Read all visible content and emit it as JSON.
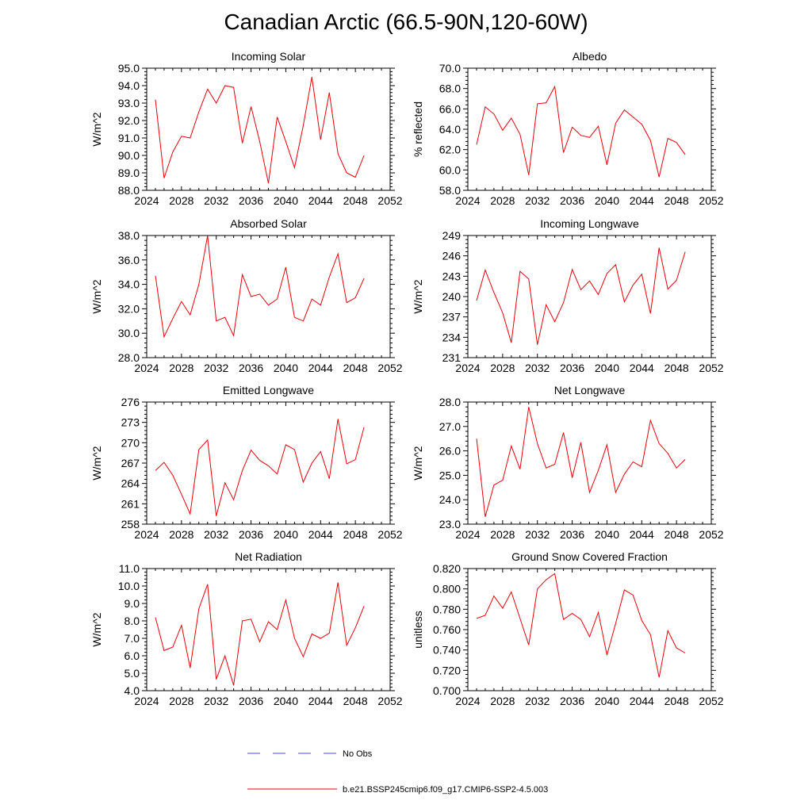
{
  "title": "Canadian Arctic (66.5-90N,120-60W)",
  "colors": {
    "model": "#e8000b",
    "obs": "#4a4adf",
    "axis": "#000000"
  },
  "legend": {
    "items": [
      {
        "label": "No Obs",
        "style": "dashed",
        "color": "#4a4adf"
      },
      {
        "label": "b.e21.BSSP245cmip6.f09_g17.CMIP6-SSP2-4.5.003",
        "style": "solid",
        "color": "#e8000b"
      }
    ]
  },
  "chart_data": [
    {
      "type": "line",
      "title": "Incoming Solar",
      "ylabel": "W/m^2",
      "xlim": [
        2024,
        2052
      ],
      "ylim": [
        88.0,
        95.0
      ],
      "xticks": [
        2024,
        2028,
        2032,
        2036,
        2040,
        2044,
        2048,
        2052
      ],
      "yticks": [
        "88.0",
        "89.0",
        "90.0",
        "91.0",
        "92.0",
        "93.0",
        "94.0",
        "95.0"
      ],
      "x": [
        2025,
        2026,
        2027,
        2028,
        2029,
        2030,
        2031,
        2032,
        2033,
        2034,
        2035,
        2036,
        2037,
        2038,
        2039,
        2040,
        2041,
        2042,
        2043,
        2044,
        2045,
        2046,
        2047,
        2048,
        2049
      ],
      "values": [
        93.2,
        88.7,
        90.2,
        91.1,
        91.0,
        92.5,
        93.8,
        93.0,
        94.0,
        93.9,
        90.7,
        92.8,
        90.8,
        88.4,
        92.2,
        90.8,
        89.3,
        91.7,
        94.5,
        90.9,
        93.6,
        90.1,
        89.0,
        88.75,
        90.0
      ]
    },
    {
      "type": "line",
      "title": "Albedo",
      "ylabel": "% reflected",
      "xlim": [
        2024,
        2052
      ],
      "ylim": [
        58.0,
        70.0
      ],
      "xticks": [
        2024,
        2028,
        2032,
        2036,
        2040,
        2044,
        2048,
        2052
      ],
      "yticks": [
        "58.0",
        "60.0",
        "62.0",
        "64.0",
        "66.0",
        "68.0",
        "70.0"
      ],
      "x": [
        2025,
        2026,
        2027,
        2028,
        2029,
        2030,
        2031,
        2032,
        2033,
        2034,
        2035,
        2036,
        2037,
        2038,
        2039,
        2040,
        2041,
        2042,
        2043,
        2044,
        2045,
        2046,
        2047,
        2048,
        2049
      ],
      "values": [
        62.5,
        66.2,
        65.5,
        63.9,
        65.1,
        63.5,
        59.5,
        66.5,
        66.6,
        68.2,
        61.7,
        64.2,
        63.4,
        63.2,
        64.3,
        60.5,
        64.6,
        65.9,
        65.2,
        64.5,
        62.9,
        59.3,
        63.1,
        62.7,
        61.5
      ]
    },
    {
      "type": "line",
      "title": "Absorbed Solar",
      "ylabel": "W/m^2",
      "xlim": [
        2024,
        2052
      ],
      "ylim": [
        28.0,
        38.0
      ],
      "xticks": [
        2024,
        2028,
        2032,
        2036,
        2040,
        2044,
        2048,
        2052
      ],
      "yticks": [
        "28.0",
        "30.0",
        "32.0",
        "34.0",
        "36.0",
        "38.0"
      ],
      "x": [
        2025,
        2026,
        2027,
        2028,
        2029,
        2030,
        2031,
        2032,
        2033,
        2034,
        2035,
        2036,
        2037,
        2038,
        2039,
        2040,
        2041,
        2042,
        2043,
        2044,
        2045,
        2046,
        2047,
        2048,
        2049
      ],
      "values": [
        34.7,
        29.7,
        31.2,
        32.6,
        31.5,
        34.0,
        38.0,
        31.0,
        31.3,
        29.8,
        34.8,
        33.0,
        33.2,
        32.3,
        32.8,
        35.4,
        31.3,
        31.0,
        32.8,
        32.3,
        34.6,
        36.5,
        32.5,
        32.9,
        34.5
      ]
    },
    {
      "type": "line",
      "title": "Incoming Longwave",
      "ylabel": "W/m^2",
      "xlim": [
        2024,
        2052
      ],
      "ylim": [
        231,
        249
      ],
      "xticks": [
        2024,
        2028,
        2032,
        2036,
        2040,
        2044,
        2048,
        2052
      ],
      "yticks": [
        "231",
        "234",
        "237",
        "240",
        "243",
        "246",
        "249"
      ],
      "x": [
        2025,
        2026,
        2027,
        2028,
        2029,
        2030,
        2031,
        2032,
        2033,
        2034,
        2035,
        2036,
        2037,
        2038,
        2039,
        2040,
        2041,
        2042,
        2043,
        2044,
        2045,
        2046,
        2047,
        2048,
        2049
      ],
      "values": [
        239.4,
        243.9,
        240.6,
        237.6,
        233.2,
        243.7,
        242.6,
        232.9,
        238.8,
        236.3,
        239.1,
        244.0,
        241.0,
        242.3,
        240.3,
        243.4,
        244.7,
        239.2,
        241.7,
        243.3,
        237.5,
        247.2,
        241.1,
        242.4,
        246.6
      ]
    },
    {
      "type": "line",
      "title": "Emitted Longwave",
      "ylabel": "W/m^2",
      "xlim": [
        2024,
        2052
      ],
      "ylim": [
        258,
        276
      ],
      "xticks": [
        2024,
        2028,
        2032,
        2036,
        2040,
        2044,
        2048,
        2052
      ],
      "yticks": [
        "258",
        "261",
        "264",
        "267",
        "270",
        "273",
        "276"
      ],
      "x": [
        2025,
        2026,
        2027,
        2028,
        2029,
        2030,
        2031,
        2032,
        2033,
        2034,
        2035,
        2036,
        2037,
        2038,
        2039,
        2040,
        2041,
        2042,
        2043,
        2044,
        2045,
        2046,
        2047,
        2048,
        2049
      ],
      "values": [
        265.9,
        267.1,
        265.2,
        262.4,
        259.5,
        269.0,
        270.4,
        259.2,
        264.1,
        261.6,
        265.9,
        268.9,
        267.4,
        266.6,
        265.4,
        269.7,
        269.0,
        264.2,
        267.0,
        268.7,
        264.7,
        273.5,
        266.9,
        267.5,
        272.3
      ]
    },
    {
      "type": "line",
      "title": "Net Longwave",
      "ylabel": "W/m^2",
      "xlim": [
        2024,
        2052
      ],
      "ylim": [
        23.0,
        28.0
      ],
      "xticks": [
        2024,
        2028,
        2032,
        2036,
        2040,
        2044,
        2048,
        2052
      ],
      "yticks": [
        "23.0",
        "24.0",
        "25.0",
        "26.0",
        "27.0",
        "28.0"
      ],
      "x": [
        2025,
        2026,
        2027,
        2028,
        2029,
        2030,
        2031,
        2032,
        2033,
        2034,
        2035,
        2036,
        2037,
        2038,
        2039,
        2040,
        2041,
        2042,
        2043,
        2044,
        2045,
        2046,
        2047,
        2048,
        2049
      ],
      "values": [
        26.5,
        23.3,
        24.6,
        24.8,
        26.2,
        25.25,
        27.8,
        26.3,
        25.3,
        25.45,
        26.75,
        24.9,
        26.35,
        24.3,
        25.2,
        26.25,
        24.3,
        25.05,
        25.55,
        25.35,
        27.25,
        26.3,
        25.9,
        25.3,
        25.65
      ]
    },
    {
      "type": "line",
      "title": "Net Radiation",
      "ylabel": "W/m^2",
      "xlim": [
        2024,
        2052
      ],
      "ylim": [
        4.0,
        11.0
      ],
      "xticks": [
        2024,
        2028,
        2032,
        2036,
        2040,
        2044,
        2048,
        2052
      ],
      "yticks": [
        "4.0",
        "5.0",
        "6.0",
        "7.0",
        "8.0",
        "9.0",
        "10.0",
        "11.0"
      ],
      "x": [
        2025,
        2026,
        2027,
        2028,
        2029,
        2030,
        2031,
        2032,
        2033,
        2034,
        2035,
        2036,
        2037,
        2038,
        2039,
        2040,
        2041,
        2042,
        2043,
        2044,
        2045,
        2046,
        2047,
        2048,
        2049
      ],
      "values": [
        8.2,
        6.3,
        6.5,
        7.75,
        5.3,
        8.7,
        10.1,
        4.65,
        6.0,
        4.3,
        8.0,
        8.1,
        6.8,
        7.95,
        7.5,
        9.2,
        7.0,
        5.95,
        7.25,
        7.0,
        7.3,
        10.2,
        6.6,
        7.6,
        8.85
      ]
    },
    {
      "type": "line",
      "title": "Ground Snow Covered Fraction",
      "ylabel": "unitless",
      "xlim": [
        2024,
        2052
      ],
      "ylim": [
        0.7,
        0.82
      ],
      "xticks": [
        2024,
        2028,
        2032,
        2036,
        2040,
        2044,
        2048,
        2052
      ],
      "yticks": [
        "0.700",
        "0.720",
        "0.740",
        "0.760",
        "0.780",
        "0.800",
        "0.820"
      ],
      "x": [
        2025,
        2026,
        2027,
        2028,
        2029,
        2030,
        2031,
        2032,
        2033,
        2034,
        2035,
        2036,
        2037,
        2038,
        2039,
        2040,
        2041,
        2042,
        2043,
        2044,
        2045,
        2046,
        2047,
        2048,
        2049
      ],
      "values": [
        0.771,
        0.774,
        0.793,
        0.781,
        0.797,
        0.771,
        0.745,
        0.8,
        0.809,
        0.815,
        0.77,
        0.776,
        0.77,
        0.753,
        0.777,
        0.735,
        0.766,
        0.799,
        0.794,
        0.769,
        0.755,
        0.713,
        0.759,
        0.742,
        0.737
      ]
    }
  ]
}
